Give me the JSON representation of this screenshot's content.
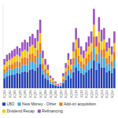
{
  "chart_data": {
    "type": "bar",
    "stacked": true,
    "tick_labels": "x",
    "legend": "bottom",
    "categories": [
      "1Q04",
      null,
      "3Q04",
      null,
      "1Q05",
      null,
      "3Q05",
      null,
      "1Q06",
      null,
      "3Q06",
      null,
      "1Q07",
      null,
      "3Q07",
      null,
      "1Q08",
      null,
      "3Q08",
      null,
      "1Q09",
      null,
      "3Q09",
      null,
      "1Q10",
      null,
      "3Q10",
      null,
      "1Q11",
      null,
      "3Q11",
      null,
      "1Q12",
      null,
      "3Q12",
      null,
      "1Q13",
      null,
      "3Q13",
      null,
      "1Q14",
      null,
      "3Q14",
      null
    ],
    "ylim": [
      0,
      100
    ],
    "series": [
      {
        "name": "LBO",
        "color": "#1f3fb0",
        "values": [
          12,
          14,
          15,
          16,
          16,
          18,
          17,
          19,
          20,
          19,
          22,
          23,
          21,
          25,
          29,
          16,
          12,
          10,
          5,
          4,
          3,
          2,
          2,
          6,
          10,
          15,
          12,
          19,
          25,
          21,
          18,
          16,
          19,
          22,
          24,
          33,
          22,
          30,
          25,
          25,
          19,
          21,
          18,
          24
        ]
      },
      {
        "name": "New Money - Other",
        "color": "#3aa6dd",
        "values": [
          6,
          6,
          7,
          6,
          8,
          7,
          7,
          9,
          8,
          9,
          10,
          9,
          9,
          11,
          13,
          6,
          6,
          4,
          3,
          2,
          1,
          1,
          1,
          2,
          5,
          7,
          6,
          9,
          11,
          9,
          7,
          6,
          9,
          10,
          10,
          15,
          10,
          12,
          11,
          11,
          9,
          9,
          7,
          10
        ]
      },
      {
        "name": "Add-on acquisition",
        "color": "#e8751a",
        "values": [
          5,
          6,
          6,
          7,
          7,
          7,
          7,
          8,
          9,
          8,
          9,
          10,
          9,
          10,
          12,
          7,
          5,
          4,
          2,
          2,
          1,
          1,
          1,
          3,
          5,
          6,
          5,
          8,
          11,
          9,
          7,
          7,
          8,
          9,
          10,
          14,
          9,
          13,
          10,
          11,
          8,
          9,
          7,
          10
        ]
      },
      {
        "name": "Dividend Recap",
        "color": "#f2c500",
        "values": [
          5,
          6,
          6,
          7,
          7,
          8,
          7,
          8,
          9,
          8,
          9,
          10,
          9,
          10,
          12,
          7,
          5,
          4,
          2,
          2,
          1,
          0,
          1,
          3,
          4,
          6,
          5,
          8,
          11,
          9,
          8,
          7,
          8,
          9,
          10,
          14,
          9,
          13,
          10,
          11,
          8,
          9,
          8,
          10
        ]
      },
      {
        "name": "Refinancing",
        "color": "#9b4fc2",
        "values": [
          7,
          8,
          8,
          9,
          9,
          10,
          10,
          11,
          12,
          11,
          12,
          13,
          12,
          14,
          16,
          9,
          7,
          6,
          3,
          2,
          2,
          1,
          1,
          4,
          6,
          8,
          7,
          11,
          14,
          12,
          10,
          9,
          11,
          12,
          14,
          19,
          12,
          17,
          14,
          14,
          11,
          12,
          10,
          14
        ]
      }
    ]
  }
}
